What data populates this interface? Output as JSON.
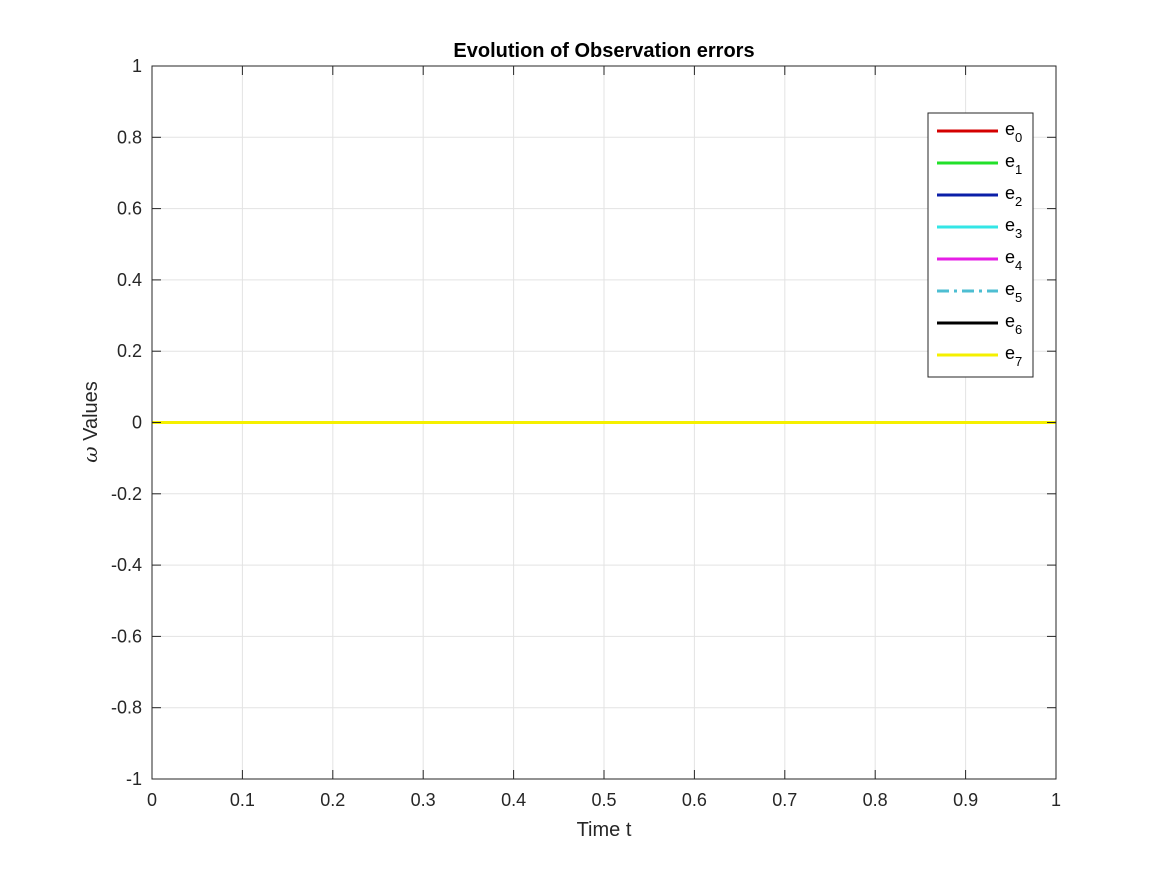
{
  "chart_data": {
    "type": "line",
    "title": "Evolution of Observation errors",
    "xlabel": "Time t",
    "ylabel": {
      "symbol": "ω",
      "text": " Values"
    },
    "xlim": [
      0,
      1
    ],
    "ylim": [
      -1,
      1
    ],
    "grid": true,
    "legend_position": "top-right",
    "x_ticks": [
      0,
      0.1,
      0.2,
      0.3,
      0.4,
      0.5,
      0.6,
      0.7,
      0.8,
      0.9,
      1
    ],
    "x_tick_labels": [
      "0",
      "0.1",
      "0.2",
      "0.3",
      "0.4",
      "0.5",
      "0.6",
      "0.7",
      "0.8",
      "0.9",
      "1"
    ],
    "y_ticks": [
      -1,
      -0.8,
      -0.6,
      -0.4,
      -0.2,
      0,
      0.2,
      0.4,
      0.6,
      0.8,
      1
    ],
    "y_tick_labels": [
      "-1",
      "-0.8",
      "-0.6",
      "-0.4",
      "-0.2",
      "0",
      "0.2",
      "0.4",
      "0.6",
      "0.8",
      "1"
    ],
    "series": [
      {
        "name": {
          "base": "e",
          "sub": "0"
        },
        "color": "#d40000",
        "style": "solid",
        "x": [
          0,
          1
        ],
        "y": [
          0,
          0
        ]
      },
      {
        "name": {
          "base": "e",
          "sub": "1"
        },
        "color": "#22e02a",
        "style": "solid",
        "x": [
          0,
          1
        ],
        "y": [
          0,
          0
        ]
      },
      {
        "name": {
          "base": "e",
          "sub": "2"
        },
        "color": "#0b1fa8",
        "style": "solid",
        "x": [
          0,
          1
        ],
        "y": [
          0,
          0
        ]
      },
      {
        "name": {
          "base": "e",
          "sub": "3"
        },
        "color": "#33e6e6",
        "style": "solid",
        "x": [
          0,
          1
        ],
        "y": [
          0,
          0
        ]
      },
      {
        "name": {
          "base": "e",
          "sub": "4"
        },
        "color": "#e61ee6",
        "style": "solid",
        "x": [
          0,
          1
        ],
        "y": [
          0,
          0
        ]
      },
      {
        "name": {
          "base": "e",
          "sub": "5"
        },
        "color": "#4dbed2",
        "style": "dashdot",
        "x": [
          0,
          1
        ],
        "y": [
          0,
          0
        ]
      },
      {
        "name": {
          "base": "e",
          "sub": "6"
        },
        "color": "#000000",
        "style": "solid",
        "x": [
          0,
          1
        ],
        "y": [
          0,
          0
        ]
      },
      {
        "name": {
          "base": "e",
          "sub": "7"
        },
        "color": "#f5f000",
        "style": "solid",
        "x": [
          0,
          1
        ],
        "y": [
          0,
          0
        ]
      }
    ]
  }
}
